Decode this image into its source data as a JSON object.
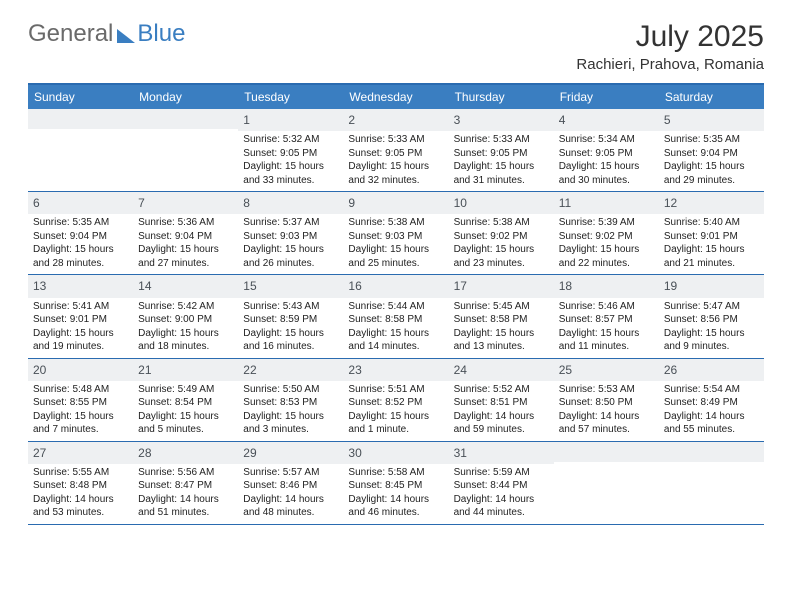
{
  "logo": {
    "text1": "General",
    "text2": "Blue"
  },
  "title": "July 2025",
  "location": "Rachieri, Prahova, Romania",
  "header_color": "#3a7ec1",
  "border_color": "#2a6bb0",
  "cell_top_bg": "#eef0f2",
  "days": [
    "Sunday",
    "Monday",
    "Tuesday",
    "Wednesday",
    "Thursday",
    "Friday",
    "Saturday"
  ],
  "weeks": [
    [
      null,
      null,
      {
        "n": "1",
        "sr": "5:32 AM",
        "ss": "9:05 PM",
        "dl": "15 hours and 33 minutes."
      },
      {
        "n": "2",
        "sr": "5:33 AM",
        "ss": "9:05 PM",
        "dl": "15 hours and 32 minutes."
      },
      {
        "n": "3",
        "sr": "5:33 AM",
        "ss": "9:05 PM",
        "dl": "15 hours and 31 minutes."
      },
      {
        "n": "4",
        "sr": "5:34 AM",
        "ss": "9:05 PM",
        "dl": "15 hours and 30 minutes."
      },
      {
        "n": "5",
        "sr": "5:35 AM",
        "ss": "9:04 PM",
        "dl": "15 hours and 29 minutes."
      }
    ],
    [
      {
        "n": "6",
        "sr": "5:35 AM",
        "ss": "9:04 PM",
        "dl": "15 hours and 28 minutes."
      },
      {
        "n": "7",
        "sr": "5:36 AM",
        "ss": "9:04 PM",
        "dl": "15 hours and 27 minutes."
      },
      {
        "n": "8",
        "sr": "5:37 AM",
        "ss": "9:03 PM",
        "dl": "15 hours and 26 minutes."
      },
      {
        "n": "9",
        "sr": "5:38 AM",
        "ss": "9:03 PM",
        "dl": "15 hours and 25 minutes."
      },
      {
        "n": "10",
        "sr": "5:38 AM",
        "ss": "9:02 PM",
        "dl": "15 hours and 23 minutes."
      },
      {
        "n": "11",
        "sr": "5:39 AM",
        "ss": "9:02 PM",
        "dl": "15 hours and 22 minutes."
      },
      {
        "n": "12",
        "sr": "5:40 AM",
        "ss": "9:01 PM",
        "dl": "15 hours and 21 minutes."
      }
    ],
    [
      {
        "n": "13",
        "sr": "5:41 AM",
        "ss": "9:01 PM",
        "dl": "15 hours and 19 minutes."
      },
      {
        "n": "14",
        "sr": "5:42 AM",
        "ss": "9:00 PM",
        "dl": "15 hours and 18 minutes."
      },
      {
        "n": "15",
        "sr": "5:43 AM",
        "ss": "8:59 PM",
        "dl": "15 hours and 16 minutes."
      },
      {
        "n": "16",
        "sr": "5:44 AM",
        "ss": "8:58 PM",
        "dl": "15 hours and 14 minutes."
      },
      {
        "n": "17",
        "sr": "5:45 AM",
        "ss": "8:58 PM",
        "dl": "15 hours and 13 minutes."
      },
      {
        "n": "18",
        "sr": "5:46 AM",
        "ss": "8:57 PM",
        "dl": "15 hours and 11 minutes."
      },
      {
        "n": "19",
        "sr": "5:47 AM",
        "ss": "8:56 PM",
        "dl": "15 hours and 9 minutes."
      }
    ],
    [
      {
        "n": "20",
        "sr": "5:48 AM",
        "ss": "8:55 PM",
        "dl": "15 hours and 7 minutes."
      },
      {
        "n": "21",
        "sr": "5:49 AM",
        "ss": "8:54 PM",
        "dl": "15 hours and 5 minutes."
      },
      {
        "n": "22",
        "sr": "5:50 AM",
        "ss": "8:53 PM",
        "dl": "15 hours and 3 minutes."
      },
      {
        "n": "23",
        "sr": "5:51 AM",
        "ss": "8:52 PM",
        "dl": "15 hours and 1 minute."
      },
      {
        "n": "24",
        "sr": "5:52 AM",
        "ss": "8:51 PM",
        "dl": "14 hours and 59 minutes."
      },
      {
        "n": "25",
        "sr": "5:53 AM",
        "ss": "8:50 PM",
        "dl": "14 hours and 57 minutes."
      },
      {
        "n": "26",
        "sr": "5:54 AM",
        "ss": "8:49 PM",
        "dl": "14 hours and 55 minutes."
      }
    ],
    [
      {
        "n": "27",
        "sr": "5:55 AM",
        "ss": "8:48 PM",
        "dl": "14 hours and 53 minutes."
      },
      {
        "n": "28",
        "sr": "5:56 AM",
        "ss": "8:47 PM",
        "dl": "14 hours and 51 minutes."
      },
      {
        "n": "29",
        "sr": "5:57 AM",
        "ss": "8:46 PM",
        "dl": "14 hours and 48 minutes."
      },
      {
        "n": "30",
        "sr": "5:58 AM",
        "ss": "8:45 PM",
        "dl": "14 hours and 46 minutes."
      },
      {
        "n": "31",
        "sr": "5:59 AM",
        "ss": "8:44 PM",
        "dl": "14 hours and 44 minutes."
      },
      null,
      null
    ]
  ],
  "labels": {
    "sunrise": "Sunrise:",
    "sunset": "Sunset:",
    "daylight": "Daylight:"
  }
}
